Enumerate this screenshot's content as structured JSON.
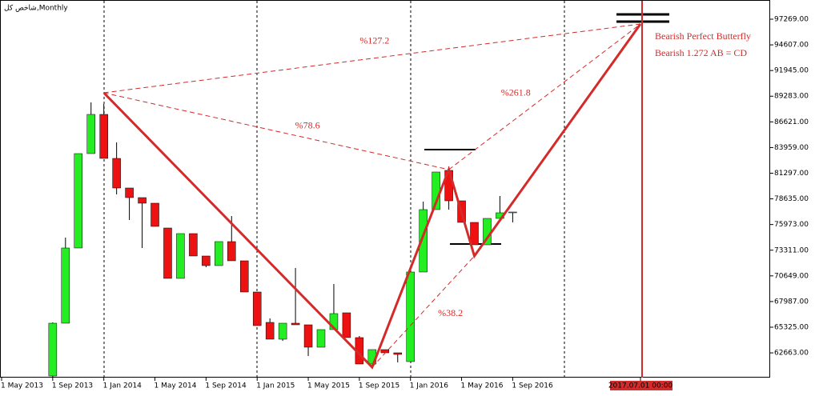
{
  "chart_data": {
    "type": "candlestick",
    "title": "شاخص کل,Monthly",
    "categories": [
      "1 May 2013",
      null,
      null,
      null,
      "1 Sep 2013",
      null,
      null,
      null,
      "1 Jan 2014",
      null,
      null,
      null,
      "1 May 2014",
      null,
      null,
      null,
      "1 Sep 2014",
      null,
      null,
      null,
      "1 Jan 2015",
      null,
      null,
      null,
      "1 May 2015",
      null,
      null,
      null,
      "1 Sep 2015",
      null,
      null,
      null,
      "1 Jan 2016",
      null,
      null,
      null,
      "1 May 2016",
      null,
      null,
      null,
      "1 Sep 2016",
      null,
      null,
      null,
      null,
      null,
      null,
      null,
      null,
      null,
      "2017.07.01 00:00"
    ],
    "open": [
      null,
      null,
      null,
      null,
      60264,
      65740,
      73540,
      83330,
      87396,
      82832,
      79762,
      78767,
      78186,
      75614,
      70387,
      75033,
      72710,
      71714,
      74203,
      72212,
      68976,
      65823,
      64081,
      65740,
      65574,
      63251,
      65077,
      66819,
      64247,
      61509,
      63002,
      62671,
      61758,
      71050,
      77522,
      81588,
      78435,
      76195,
      73871,
      76609,
      77190,
      null,
      null,
      null,
      null,
      null,
      null,
      null,
      null,
      null,
      null
    ],
    "high": [
      null,
      null,
      null,
      null,
      65823,
      74618,
      83330,
      88640,
      88474,
      84492,
      79762,
      78767,
      78186,
      75614,
      75033,
      75033,
      72710,
      74203,
      76858,
      72212,
      68976,
      66239,
      65740,
      71465,
      65574,
      65077,
      69806,
      66819,
      64412,
      63002,
      63002,
      62671,
      71050,
      78352,
      81422,
      82003,
      78435,
      76195,
      76609,
      78933,
      77273,
      null,
      null,
      null,
      null,
      null,
      null,
      null,
      null,
      null,
      null
    ],
    "low": [
      null,
      null,
      null,
      null,
      60098,
      65740,
      73540,
      83330,
      82832,
      79099,
      76444,
      73540,
      75780,
      70387,
      70387,
      72710,
      71548,
      71714,
      72212,
      68976,
      65491,
      64081,
      63916,
      65574,
      62339,
      63251,
      65077,
      64247,
      61509,
      61509,
      62671,
      61676,
      61758,
      71050,
      77522,
      77522,
      76195,
      73871,
      73871,
      76609,
      76195,
      null,
      null,
      null,
      null,
      null,
      null,
      null,
      null,
      null,
      null
    ],
    "close": [
      null,
      null,
      null,
      null,
      65740,
      73540,
      83330,
      87396,
      82832,
      79762,
      78767,
      78186,
      75780,
      70387,
      75033,
      72710,
      71714,
      74203,
      72212,
      68976,
      65491,
      64081,
      65740,
      65574,
      63251,
      65077,
      66736,
      64247,
      61509,
      63002,
      62671,
      62505,
      71050,
      77522,
      81422,
      78435,
      76195,
      73871,
      76609,
      77190,
      77273,
      null,
      null,
      null,
      null,
      null,
      null,
      null,
      null,
      null,
      null
    ],
    "up_color": "#22ee22",
    "down_color": "#ee1111",
    "pattern": {
      "color": "#d42a2a",
      "points": [
        {
          "x": 8,
          "value": 89636
        },
        {
          "x": 29,
          "value": 61177
        },
        {
          "x": 35,
          "value": 81671
        },
        {
          "x": 37,
          "value": 72710
        },
        {
          "x": 50,
          "value": 96771
        }
      ],
      "ratios": [
        {
          "label": "%127.2",
          "from": 0,
          "to": 4
        },
        {
          "label": "%78.6",
          "from": 0,
          "to": 2
        },
        {
          "label": "%261.8",
          "from": 2,
          "to": 4
        },
        {
          "label": "%38.2",
          "from": 1,
          "to": 3
        }
      ],
      "notes": [
        "Bearish Perfect Butterfly",
        "Bearish 1.272 AB = CD"
      ]
    },
    "ylim": [
      60098,
      99260
    ],
    "yticks": [
      {
        "value": 97269,
        "label": "97269.00"
      },
      {
        "value": 94607,
        "label": "94607.00"
      },
      {
        "value": 91945,
        "label": "91945.00"
      },
      {
        "value": 89283,
        "label": "89283.00"
      },
      {
        "value": 86621,
        "label": "86621.00"
      },
      {
        "value": 83959,
        "label": "83959.00"
      },
      {
        "value": 81297,
        "label": "81297.00"
      },
      {
        "value": 78635,
        "label": "78635.00"
      },
      {
        "value": 75973,
        "label": "75973.00"
      },
      {
        "value": 73311,
        "label": "73311.00"
      },
      {
        "value": 70649,
        "label": "70649.00"
      },
      {
        "value": 67987,
        "label": "67987.00"
      },
      {
        "value": 65325,
        "label": "65325.00"
      },
      {
        "value": 62663,
        "label": "62663.00"
      }
    ]
  }
}
